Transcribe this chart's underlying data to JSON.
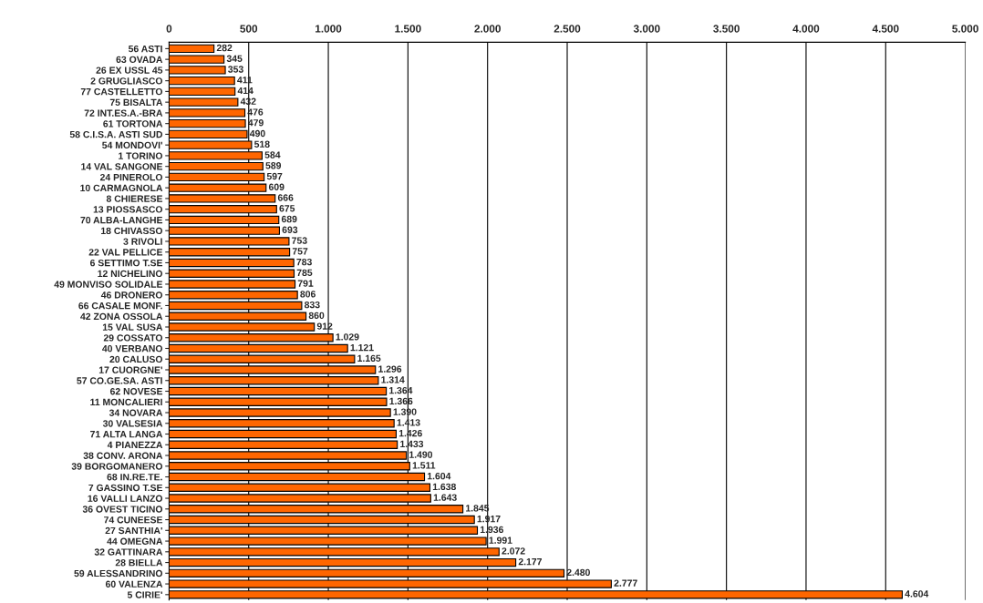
{
  "chart_data": {
    "type": "bar",
    "orientation": "horizontal",
    "categories": [
      "56 ASTI",
      "63 OVADA",
      "26 EX USSL 45",
      "2 GRUGLIASCO",
      "77 CASTELLETTO",
      "75 BISALTA",
      "72 INT.ES.A.-BRA",
      "61 TORTONA",
      "58 C.I.S.A. ASTI SUD",
      "54 MONDOVI'",
      "1 TORINO",
      "14 VAL SANGONE",
      "24 PINEROLO",
      "10 CARMAGNOLA",
      "8 CHIERESE",
      "13 PIOSSASCO",
      "70 ALBA-LANGHE",
      "18 CHIVASSO",
      "3 RIVOLI",
      "22 VAL PELLICE",
      "6 SETTIMO T.SE",
      "12 NICHELINO",
      "49 MONVISO SOLIDALE",
      "46 DRONERO",
      "66 CASALE MONF.",
      "42 ZONA OSSOLA",
      "15 VAL SUSA",
      "29 COSSATO",
      "40 VERBANO",
      "20 CALUSO",
      "17 CUORGNE'",
      "57 CO.GE.SA. ASTI",
      "62 NOVESE",
      "11 MONCALIERI",
      "34 NOVARA",
      "30 VALSESIA",
      "71 ALTA LANGA",
      "4 PIANEZZA",
      "38 CONV. ARONA",
      "39 BORGOMANERO",
      "68 IN.RE.TE.",
      "7 GASSINO T.SE",
      "16 VALLI LANZO",
      "36 OVEST TICINO",
      "74 CUNEESE",
      "27 SANTHIA'",
      "44 OMEGNA",
      "32 GATTINARA",
      "28 BIELLA",
      "59 ALESSANDRINO",
      "60 VALENZA",
      "5 CIRIE'"
    ],
    "values": [
      282,
      345,
      353,
      411,
      414,
      432,
      476,
      479,
      490,
      518,
      584,
      589,
      597,
      609,
      666,
      675,
      689,
      693,
      753,
      757,
      783,
      785,
      791,
      806,
      833,
      860,
      912,
      1029,
      1121,
      1165,
      1296,
      1314,
      1364,
      1366,
      1390,
      1413,
      1426,
      1433,
      1490,
      1511,
      1604,
      1638,
      1643,
      1845,
      1917,
      1936,
      1991,
      2072,
      2177,
      2480,
      2777,
      4604
    ],
    "value_labels": [
      "282",
      "345",
      "353",
      "411",
      "414",
      "432",
      "476",
      "479",
      "490",
      "518",
      "584",
      "589",
      "597",
      "609",
      "666",
      "675",
      "689",
      "693",
      "753",
      "757",
      "783",
      "785",
      "791",
      "806",
      "833",
      "860",
      "912",
      "1.029",
      "1.121",
      "1.165",
      "1.296",
      "1.314",
      "1.364",
      "1.366",
      "1.390",
      "1.413",
      "1.426",
      "1.433",
      "1.490",
      "1.511",
      "1.604",
      "1.638",
      "1.643",
      "1.845",
      "1.917",
      "1.936",
      "1.991",
      "2.072",
      "2.177",
      "2.480",
      "2.777",
      "4.604"
    ],
    "color": "#ff6600",
    "xlim": [
      0,
      5000
    ],
    "xticks": [
      0,
      500,
      {
        "value": 1000,
        "label": "1.000"
      },
      {
        "value": 1500,
        "label": "1.500"
      },
      {
        "value": 2000,
        "label": "2.000"
      },
      {
        "value": 2500,
        "label": "2.500"
      },
      {
        "value": 3000,
        "label": "3.000"
      },
      {
        "value": 3500,
        "label": "3.500"
      },
      {
        "value": 4000,
        "label": "4.000"
      },
      {
        "value": 4500,
        "label": "4.500"
      },
      {
        "value": 5000,
        "label": "5.000"
      }
    ],
    "grid": "x"
  }
}
